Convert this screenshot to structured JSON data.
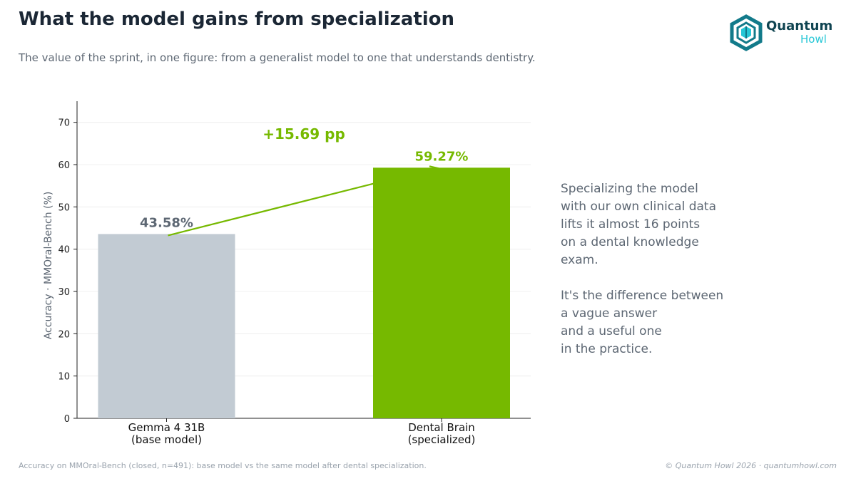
{
  "header": {
    "title": "What the model gains from specialization",
    "subtitle": "The value of the sprint, in one figure: from a generalist model to one that understands dentistry."
  },
  "logo": {
    "word1": "Quantum",
    "word2": "Howl",
    "icon": "hexagon-logo-icon",
    "colors": {
      "dark": "#0f4451",
      "teal": "#127a8a",
      "cyan": "#27c7d6"
    }
  },
  "chart_data": {
    "type": "bar",
    "categories": [
      "Gemma 4 31B\n(base model)",
      "Dental Brain\n(specialized)"
    ],
    "values": [
      43.58,
      59.27
    ],
    "value_labels": [
      "43.58%",
      "59.27%"
    ],
    "colors": [
      "#c2cbd3",
      "#76b900"
    ],
    "label_colors": [
      "#5d6773",
      "#76b900"
    ],
    "ylabel": "Accuracy · MMOral-Bench (%)",
    "ylim": [
      0,
      75
    ],
    "yticks": [
      0,
      10,
      20,
      30,
      40,
      50,
      60,
      70
    ],
    "grid": true,
    "annotation": {
      "text": "+15.69 pp",
      "color": "#76b900"
    }
  },
  "side_text": {
    "paragraph1": "Specializing the model\nwith our own clinical data\nlifts it almost 16 points\non a dental knowledge\nexam.",
    "paragraph2": "It's the difference between\na vague answer\nand a useful one\nin the practice."
  },
  "footer": {
    "footnote": "Accuracy on MMOral-Bench (closed, n=491): base model vs the same model after dental specialization.",
    "copyright": "© Quantum Howl 2026 · quantumhowl.com"
  }
}
